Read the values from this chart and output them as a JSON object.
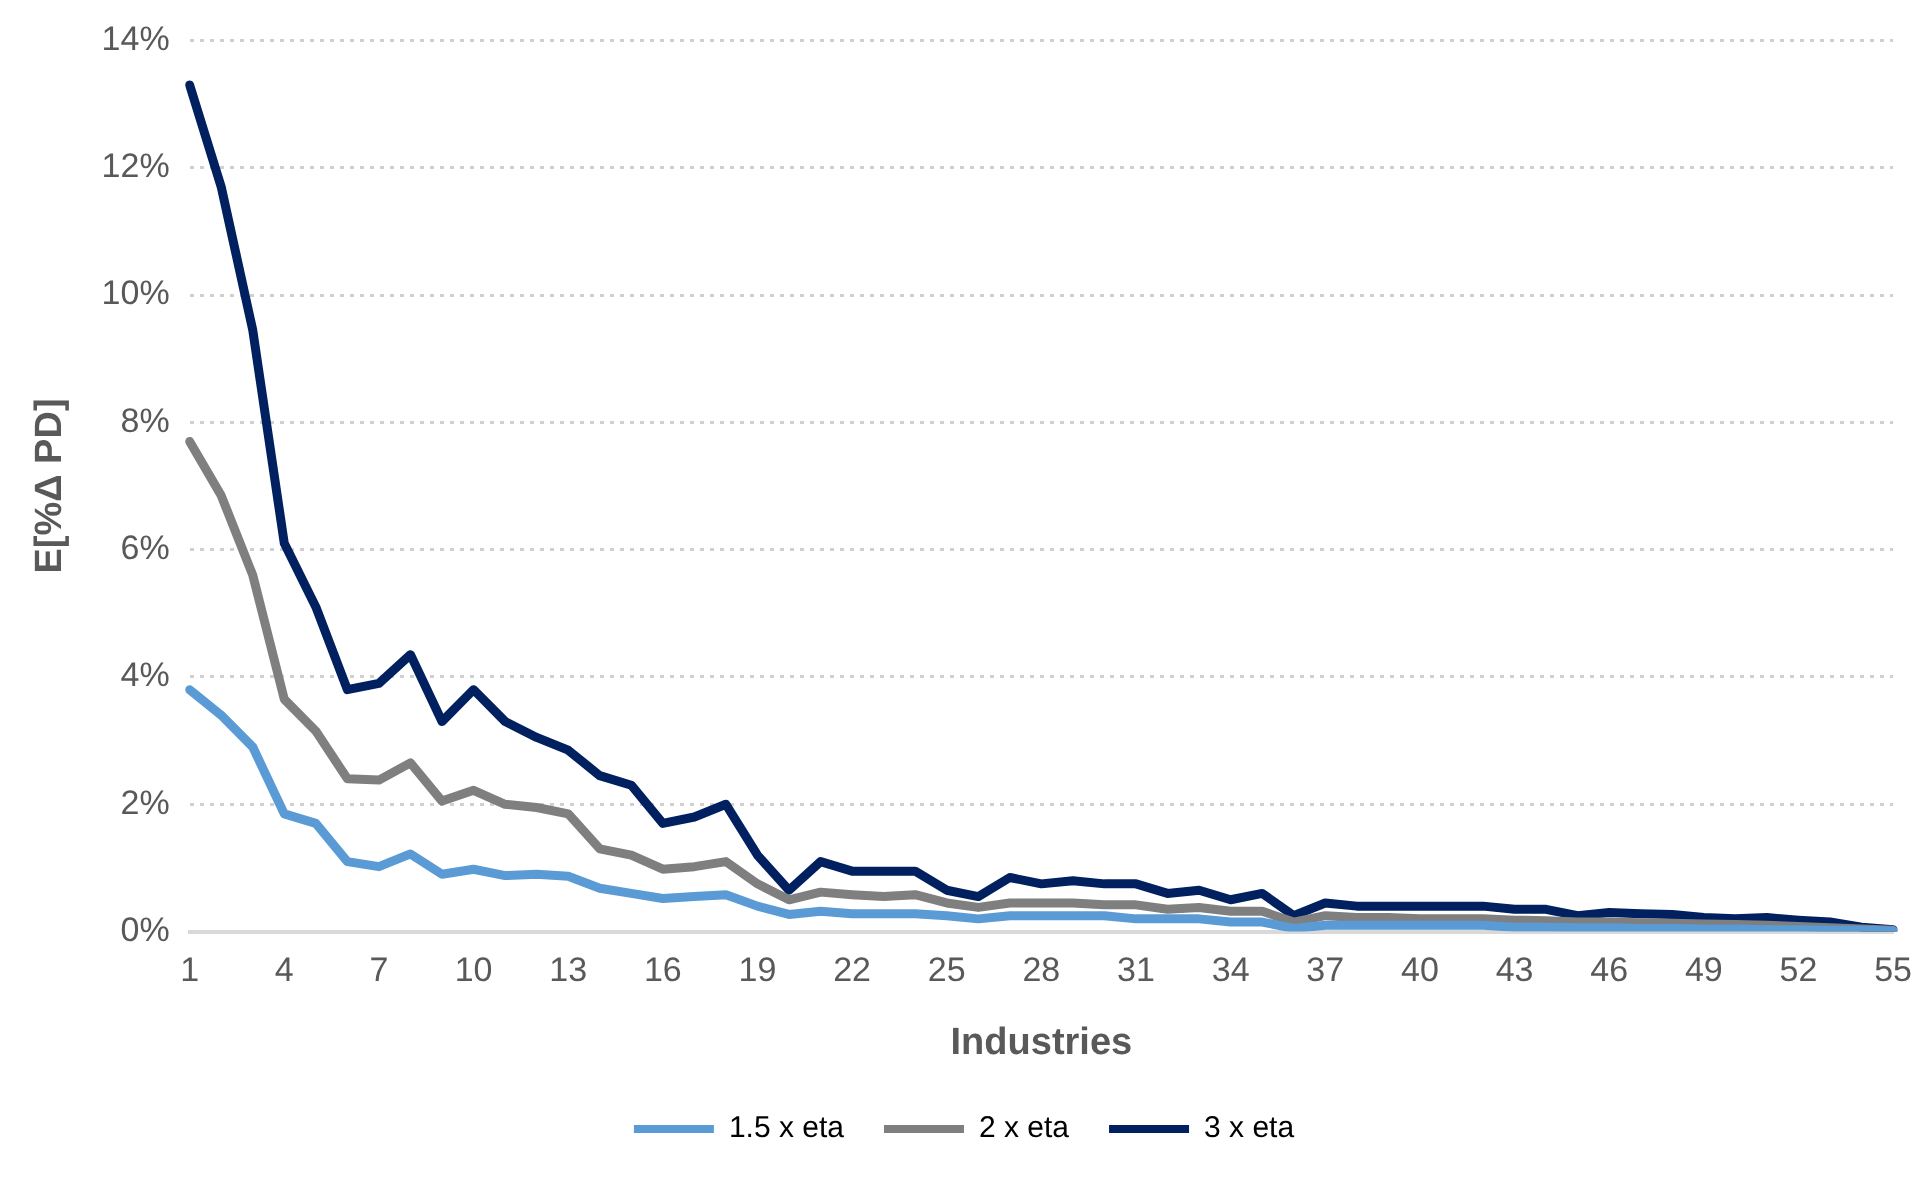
{
  "chart_data": {
    "type": "line",
    "xlabel": "Industries",
    "ylabel": "E[%Δ PD]",
    "categories": [
      "1",
      null,
      null,
      "4",
      null,
      null,
      "7",
      null,
      null,
      "10",
      null,
      null,
      "13",
      null,
      null,
      "16",
      null,
      null,
      "19",
      null,
      null,
      "22",
      null,
      null,
      "25",
      null,
      null,
      "28",
      null,
      null,
      "31",
      null,
      null,
      "34",
      null,
      null,
      "37",
      null,
      null,
      "40",
      null,
      null,
      "43",
      null,
      null,
      "46",
      null,
      null,
      "49",
      null,
      null,
      "52",
      null,
      null,
      "55"
    ],
    "series": [
      {
        "name": "1.5 x eta",
        "color": "#5b9bd5",
        "values": [
          3.8,
          3.4,
          2.9,
          1.85,
          1.7,
          1.1,
          1.02,
          1.22,
          0.9,
          0.98,
          0.88,
          0.9,
          0.87,
          0.68,
          0.6,
          0.52,
          0.55,
          0.58,
          0.4,
          0.27,
          0.32,
          0.28,
          0.28,
          0.28,
          0.25,
          0.2,
          0.25,
          0.25,
          0.25,
          0.25,
          0.2,
          0.2,
          0.2,
          0.15,
          0.15,
          0.05,
          0.1,
          0.1,
          0.1,
          0.1,
          0.1,
          0.1,
          0.07,
          0.07,
          0.06,
          0.06,
          0.05,
          0.05,
          0.04,
          0.04,
          0.03,
          0.03,
          0.02,
          0.02,
          0.01
        ]
      },
      {
        "name": "2 x eta",
        "color": "#7f7f7f",
        "values": [
          7.7,
          6.85,
          5.6,
          3.65,
          3.15,
          2.4,
          2.38,
          2.65,
          2.05,
          2.22,
          2.0,
          1.95,
          1.85,
          1.3,
          1.2,
          0.98,
          1.02,
          1.1,
          0.75,
          0.5,
          0.62,
          0.58,
          0.55,
          0.58,
          0.45,
          0.38,
          0.45,
          0.45,
          0.45,
          0.42,
          0.42,
          0.35,
          0.38,
          0.32,
          0.32,
          0.15,
          0.25,
          0.22,
          0.22,
          0.2,
          0.2,
          0.2,
          0.18,
          0.17,
          0.15,
          0.15,
          0.14,
          0.13,
          0.12,
          0.11,
          0.1,
          0.08,
          0.06,
          0.04,
          0.02
        ]
      },
      {
        "name": "3 x eta",
        "color": "#002060",
        "values": [
          13.3,
          11.7,
          9.45,
          6.1,
          5.1,
          3.8,
          3.9,
          4.35,
          3.3,
          3.8,
          3.3,
          3.05,
          2.85,
          2.45,
          2.3,
          1.7,
          1.8,
          2.0,
          1.2,
          0.65,
          1.1,
          0.95,
          0.95,
          0.95,
          0.65,
          0.55,
          0.85,
          0.75,
          0.8,
          0.75,
          0.75,
          0.6,
          0.65,
          0.5,
          0.6,
          0.25,
          0.45,
          0.4,
          0.4,
          0.4,
          0.4,
          0.4,
          0.35,
          0.35,
          0.25,
          0.3,
          0.28,
          0.27,
          0.22,
          0.2,
          0.22,
          0.18,
          0.15,
          0.07,
          0.03
        ]
      }
    ],
    "ylim": [
      0,
      14
    ],
    "yticks": [
      {
        "value": 0,
        "label": "0%"
      },
      {
        "value": 2,
        "label": "2%"
      },
      {
        "value": 4,
        "label": "4%"
      },
      {
        "value": 6,
        "label": "6%"
      },
      {
        "value": 8,
        "label": "8%"
      },
      {
        "value": 10,
        "label": "10%"
      },
      {
        "value": 12,
        "label": "12%"
      },
      {
        "value": 14,
        "label": "14%"
      }
    ],
    "grid": "y",
    "legend": "bottom",
    "marker": "none",
    "line_style": "solid"
  }
}
